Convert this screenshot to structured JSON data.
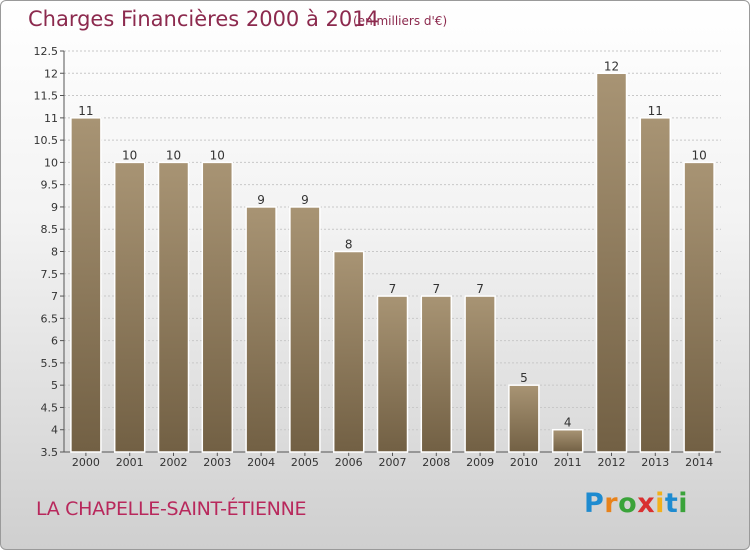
{
  "chart_data": {
    "type": "bar",
    "title": "Charges Financières 2000 à 2014",
    "subtitle": "(en milliers d'€)",
    "categories": [
      "2000",
      "2001",
      "2002",
      "2003",
      "2004",
      "2005",
      "2006",
      "2007",
      "2008",
      "2009",
      "2010",
      "2011",
      "2012",
      "2013",
      "2014"
    ],
    "values": [
      11,
      10,
      10,
      10,
      9,
      9,
      8,
      7,
      7,
      7,
      5,
      4,
      12,
      11,
      10
    ],
    "value_labels": [
      "11",
      "10",
      "10",
      "10",
      "9",
      "9",
      "8",
      "7",
      "7",
      "7",
      "5",
      "4",
      "12",
      "11",
      "10"
    ],
    "ylim": [
      3.5,
      12.5
    ],
    "yticks": [
      "3.5",
      "4",
      "4.5",
      "5",
      "5.5",
      "6",
      "6.5",
      "7",
      "7.5",
      "8",
      "8.5",
      "9",
      "9.5",
      "10",
      "10.5",
      "11",
      "11.5",
      "12",
      "12.5"
    ],
    "grid": true,
    "bar_color": "#8b7756"
  },
  "footer": {
    "location": "LA CHAPELLE-SAINT-ÉTIENNE",
    "logo_letters": [
      "P",
      "r",
      "o",
      "x",
      "i",
      "t",
      "i"
    ],
    "logo_colors": [
      "#1e8bd0",
      "#e8821a",
      "#3aa33a",
      "#d93030",
      "#f2b01a",
      "#1e8bd0",
      "#3aa33a"
    ]
  }
}
